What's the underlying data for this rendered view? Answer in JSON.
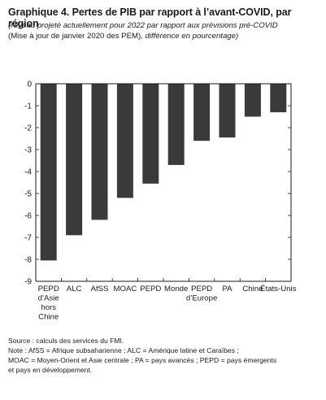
{
  "title": "Graphique 4.  Pertes de PIB par rapport à l’avant-COVID, par région",
  "subtitle_italic_1": "(Niveau projeté actuellement pour 2022 par rapport aux prévisions pré-COVID",
  "subtitle_upright": "(Mise à jour de janvier 2020 des PEM)",
  "subtitle_italic_2": ", différence en pourcentage)",
  "source": "Source : calculs des services du FMI.",
  "note_1": "Note : AfSS = Afrique subsaharienne ; ALC = Amérique latine et Caraïbes ;",
  "note_2": "MOAC = Moyen-Orient et Asie centrale ; PA = pays avancés ; PEPD = pays émergents",
  "note_3": "et pays en développement.",
  "colors": {
    "bar": "#3a3a3a",
    "axis": "#1a1a1a",
    "text": "#1a1a1a"
  },
  "chart_data": {
    "type": "bar",
    "categories": [
      "PEPD d’Asie hors Chine",
      "ALC",
      "AfSS",
      "MOAC",
      "PEPD",
      "Monde",
      "PEPD d’Europe",
      "PA",
      "Chine",
      "États-Unis"
    ],
    "category_lines": [
      [
        "PEPD",
        "d’Asie",
        "hors",
        "Chine"
      ],
      [
        "ALC"
      ],
      [
        "AfSS"
      ],
      [
        "MOAC"
      ],
      [
        "PEPD"
      ],
      [
        "Monde"
      ],
      [
        "PEPD",
        "d’Europe"
      ],
      [
        "PA"
      ],
      [
        "Chine"
      ],
      [
        "États-Unis"
      ]
    ],
    "values": [
      -8.05,
      -6.9,
      -6.2,
      -5.2,
      -4.55,
      -3.7,
      -2.6,
      -2.45,
      -1.5,
      -1.3
    ],
    "ylim": [
      -9,
      0
    ],
    "yticks": [
      "0",
      "-1",
      "-2",
      "-3",
      "-4",
      "-5",
      "-6",
      "-7",
      "-8",
      "-9"
    ],
    "grid": false
  }
}
